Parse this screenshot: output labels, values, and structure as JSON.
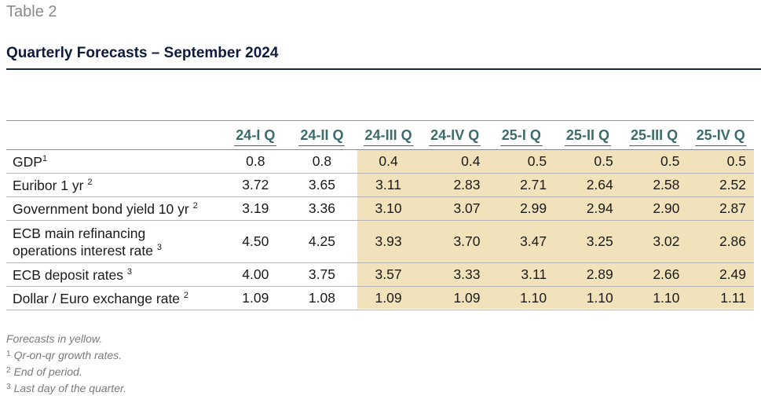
{
  "table_label": "Table 2",
  "title": "Quarterly Forecasts – September 2024",
  "headers": [
    "24-I Q",
    "24-II Q",
    "24-III Q",
    "24-IV Q",
    "25-I Q",
    "25-II Q",
    "25-III Q",
    "25-IV Q"
  ],
  "rows": [
    {
      "label": "GDP",
      "sup": "1",
      "values": [
        "0.8",
        "0.8",
        "0.4",
        "0.4",
        "0.5",
        "0.5",
        "0.5",
        "0.5"
      ]
    },
    {
      "label": "Euribor 1 yr",
      "sup": "2",
      "values": [
        "3.72",
        "3.65",
        "3.11",
        "2.83",
        "2.71",
        "2.64",
        "2.58",
        "2.52"
      ]
    },
    {
      "label": "Government bond yield 10 yr",
      "sup": "2",
      "values": [
        "3.19",
        "3.36",
        "3.10",
        "3.07",
        "2.99",
        "2.94",
        "2.90",
        "2.87"
      ]
    },
    {
      "label": "ECB main refinancing",
      "label2": "operations interest rate",
      "sup": "3",
      "values": [
        "4.50",
        "4.25",
        "3.93",
        "3.70",
        "3.47",
        "3.25",
        "3.02",
        "2.86"
      ]
    },
    {
      "label": "ECB deposit rates",
      "sup": "3",
      "values": [
        "4.00",
        "3.75",
        "3.57",
        "3.33",
        "3.11",
        "2.89",
        "2.66",
        "2.49"
      ]
    },
    {
      "label": "Dollar / Euro exchange rate",
      "sup": "2",
      "values": [
        "1.09",
        "1.08",
        "1.09",
        "1.09",
        "1.10",
        "1.10",
        "1.10",
        "1.11"
      ]
    }
  ],
  "forecast_color": "#f1e2bb",
  "header_color": "#3d6b6b",
  "notes": {
    "forecast": "Forecasts in yellow.",
    "footnotes": [
      {
        "sup": "1",
        "text": "Qr-on-qr growth rates."
      },
      {
        "sup": "2",
        "text": "End of period."
      },
      {
        "sup": "3",
        "text": "Last day of the quarter."
      }
    ]
  }
}
